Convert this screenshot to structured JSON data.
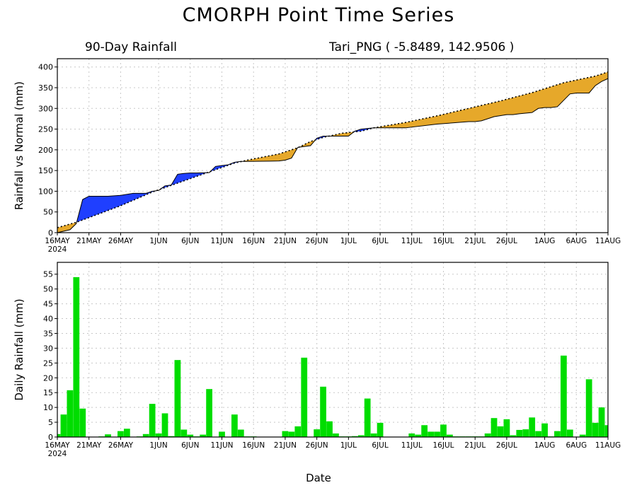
{
  "header": {
    "title": "CMORPH Point Time Series",
    "left_subtitle": "90-Day Rainfall",
    "right_subtitle": "Tari_PNG ( -5.8489, 142.9506 )"
  },
  "xaxis": {
    "label": "Date",
    "ticks": [
      {
        "day": 0,
        "label": "16MAY"
      },
      {
        "day": 5,
        "label": "21MAY"
      },
      {
        "day": 10,
        "label": "26MAY"
      },
      {
        "day": 16,
        "label": "1JUN"
      },
      {
        "day": 21,
        "label": "6JUN"
      },
      {
        "day": 26,
        "label": "11JUN"
      },
      {
        "day": 31,
        "label": "16JUN"
      },
      {
        "day": 36,
        "label": "21JUN"
      },
      {
        "day": 41,
        "label": "26JUN"
      },
      {
        "day": 46,
        "label": "1JUL"
      },
      {
        "day": 51,
        "label": "6JUL"
      },
      {
        "day": 56,
        "label": "11JUL"
      },
      {
        "day": 61,
        "label": "16JUL"
      },
      {
        "day": 66,
        "label": "21JUL"
      },
      {
        "day": 71,
        "label": "26JUL"
      },
      {
        "day": 77,
        "label": "1AUG"
      },
      {
        "day": 82,
        "label": "6AUG"
      },
      {
        "day": 87,
        "label": "11AUG"
      }
    ],
    "year_label": "2024"
  },
  "colors": {
    "above_normal": "#1f3fff",
    "below_normal": "#e6a82a",
    "daily_bar": "#00dd00",
    "grid": "#c8c8c8"
  },
  "chart_data": [
    {
      "type": "area",
      "title": "90-Day Rainfall",
      "ylabel": "Rainfall vs Normal (mm)",
      "xlabel": "",
      "ylim": [
        0,
        420
      ],
      "yticks": [
        0,
        50,
        100,
        150,
        200,
        250,
        300,
        350,
        400
      ],
      "grid": true,
      "series": [
        {
          "name": "Rainfall",
          "style": "solid",
          "x": [
            0,
            2,
            3,
            4,
            5,
            6,
            8,
            10,
            12,
            14,
            15,
            16,
            17,
            18,
            19,
            20,
            21,
            22,
            24,
            25,
            26,
            27,
            28,
            29,
            30,
            35,
            36,
            37,
            38,
            40,
            41,
            42,
            45,
            46,
            47,
            48,
            50,
            52,
            55,
            60,
            65,
            66,
            67,
            69,
            71,
            72,
            73,
            75,
            76,
            77,
            78,
            79,
            81,
            82,
            83,
            84,
            85,
            86,
            87
          ],
          "y": [
            0,
            7,
            22,
            80,
            88,
            88,
            88,
            90,
            95,
            95,
            100,
            102,
            113,
            115,
            141,
            143,
            144,
            144,
            145,
            160,
            162,
            164,
            170,
            172,
            172,
            173,
            175,
            180,
            206,
            210,
            228,
            233,
            233,
            233,
            245,
            250,
            253,
            253,
            253,
            262,
            268,
            268,
            270,
            280,
            285,
            285,
            287,
            290,
            300,
            302,
            302,
            304,
            335,
            337,
            337,
            337,
            355,
            365,
            372
          ]
        },
        {
          "name": "Normal",
          "style": "dotted",
          "x": [
            0,
            3,
            6,
            10,
            15,
            20,
            25,
            28,
            30,
            35,
            38,
            40,
            42,
            45,
            48,
            50,
            55,
            60,
            65,
            70,
            75,
            80,
            85,
            87
          ],
          "y": [
            12,
            25,
            42,
            65,
            98,
            125,
            152,
            168,
            175,
            190,
            205,
            220,
            230,
            240,
            245,
            253,
            266,
            282,
            300,
            318,
            338,
            362,
            378,
            388
          ]
        }
      ]
    },
    {
      "type": "bar",
      "title": "",
      "ylabel": "Daily Rainfall (mm)",
      "xlabel": "Date",
      "ylim": [
        0,
        59
      ],
      "yticks": [
        0,
        5,
        10,
        15,
        20,
        25,
        30,
        35,
        40,
        45,
        50,
        55
      ],
      "grid": true,
      "series": [
        {
          "name": "Daily Rainfall",
          "x": [
            0,
            1,
            2,
            3,
            4,
            5,
            6,
            7,
            8,
            9,
            10,
            11,
            12,
            13,
            14,
            15,
            16,
            17,
            18,
            19,
            20,
            21,
            22,
            23,
            24,
            25,
            26,
            27,
            28,
            29,
            30,
            31,
            32,
            33,
            34,
            35,
            36,
            37,
            38,
            39,
            40,
            41,
            42,
            43,
            44,
            45,
            46,
            47,
            48,
            49,
            50,
            51,
            52,
            53,
            54,
            55,
            56,
            57,
            58,
            59,
            60,
            61,
            62,
            63,
            64,
            65,
            66,
            67,
            68,
            69,
            70,
            71,
            72,
            73,
            74,
            75,
            76,
            77,
            78,
            79,
            80,
            81,
            82,
            83,
            84,
            85,
            86,
            87
          ],
          "values": [
            1.0,
            7.6,
            15.8,
            54.0,
            9.6,
            0,
            0.1,
            0.2,
            0.9,
            0,
            2.0,
            2.8,
            0,
            0.2,
            1.0,
            11.2,
            1.2,
            8.0,
            0.3,
            26.0,
            2.5,
            0.8,
            0.2,
            0.8,
            16.2,
            0.1,
            1.8,
            0.1,
            7.6,
            2.5,
            0.2,
            0.2,
            0.1,
            0.1,
            0.1,
            0.1,
            2.0,
            1.8,
            3.6,
            26.8,
            0.1,
            2.6,
            17.0,
            5.3,
            1.2,
            0.2,
            0.2,
            0.3,
            0.6,
            13.0,
            1.2,
            4.8,
            0.1,
            0.1,
            0.1,
            0.1,
            1.2,
            0.8,
            4.0,
            1.8,
            1.8,
            4.2,
            0.8,
            0.2,
            0.2,
            0.2,
            0.2,
            0.2,
            1.2,
            6.4,
            3.6,
            6.0,
            0.6,
            2.4,
            2.6,
            6.6,
            2.0,
            4.6,
            0.2,
            2.0,
            27.5,
            2.5,
            0.1,
            0.8,
            19.5,
            4.8,
            10.0,
            4.0
          ]
        }
      ]
    }
  ]
}
